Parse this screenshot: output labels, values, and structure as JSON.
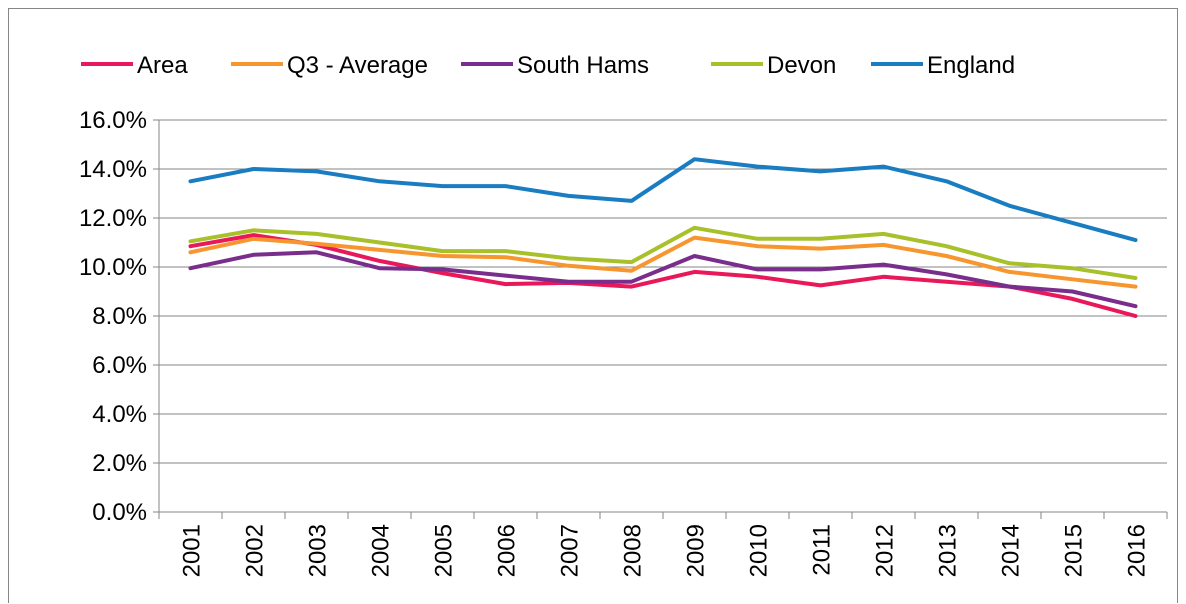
{
  "chart_data": {
    "type": "line",
    "title": "",
    "xlabel": "",
    "ylabel": "",
    "x": [
      "2001",
      "2002",
      "2003",
      "2004",
      "2005",
      "2006",
      "2007",
      "2008",
      "2009",
      "2010",
      "2011",
      "2012",
      "2013",
      "2014",
      "2015",
      "2016"
    ],
    "ylim": [
      0,
      16
    ],
    "yticks": [
      0,
      2,
      4,
      6,
      8,
      10,
      12,
      14,
      16
    ],
    "ytick_labels": [
      "0.0%",
      "2.0%",
      "4.0%",
      "6.0%",
      "8.0%",
      "10.0%",
      "12.0%",
      "14.0%",
      "16.0%"
    ],
    "grid": "horizontal",
    "legend_position": "top",
    "series": [
      {
        "name": "Area",
        "color": "#e8185a",
        "values": [
          10.85,
          11.3,
          10.9,
          10.25,
          9.75,
          9.3,
          9.35,
          9.2,
          9.8,
          9.6,
          9.25,
          9.6,
          9.4,
          9.2,
          8.7,
          8.0
        ]
      },
      {
        "name": "Q3 - Average",
        "color": "#f7962e",
        "values": [
          10.6,
          11.15,
          10.95,
          10.7,
          10.45,
          10.4,
          10.05,
          9.85,
          11.2,
          10.85,
          10.75,
          10.9,
          10.45,
          9.8,
          9.5,
          9.2
        ]
      },
      {
        "name": "South Hams",
        "color": "#7a2e8c",
        "values": [
          9.95,
          10.5,
          10.6,
          9.95,
          9.9,
          9.65,
          9.4,
          9.4,
          10.45,
          9.9,
          9.9,
          10.1,
          9.7,
          9.2,
          9.0,
          8.4
        ]
      },
      {
        "name": "Devon",
        "color": "#a8c02a",
        "values": [
          11.05,
          11.5,
          11.35,
          11.0,
          10.65,
          10.65,
          10.35,
          10.2,
          11.6,
          11.15,
          11.15,
          11.35,
          10.85,
          10.15,
          9.95,
          9.55
        ]
      },
      {
        "name": "England",
        "color": "#1a7dc2",
        "values": [
          13.5,
          14.0,
          13.9,
          13.5,
          13.3,
          13.3,
          12.9,
          12.7,
          14.4,
          14.1,
          13.9,
          14.1,
          13.5,
          12.5,
          11.8,
          11.1
        ]
      }
    ]
  }
}
